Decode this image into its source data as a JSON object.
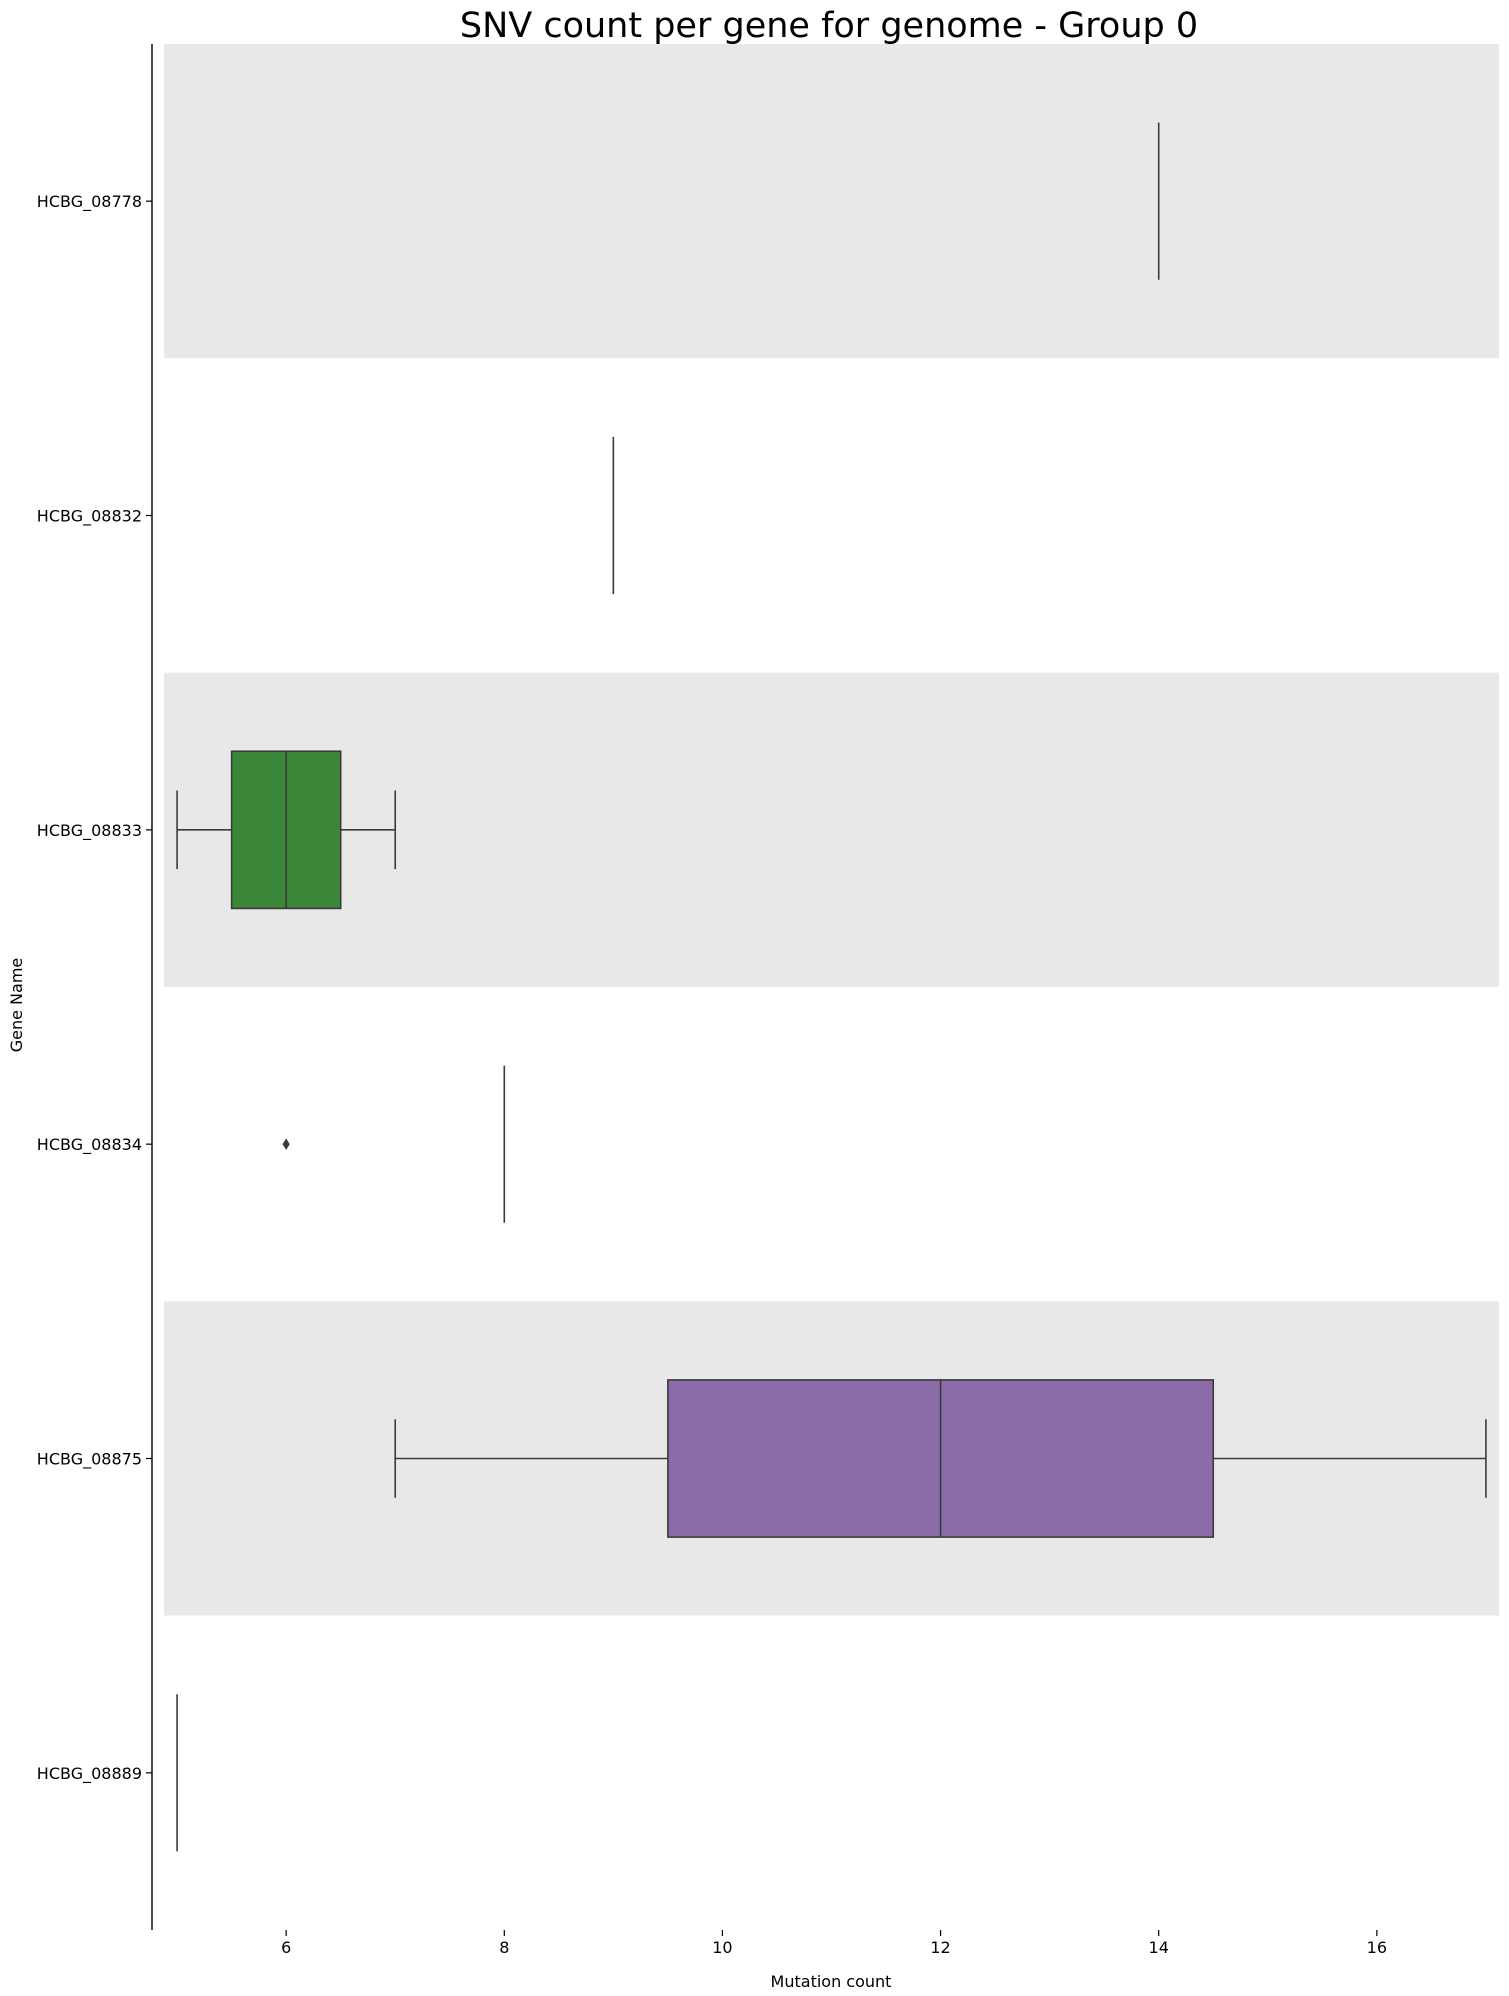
{
  "chart_data": {
    "type": "boxplot",
    "orientation": "horizontal",
    "title": "SNV count per gene for genome - Group 0",
    "xlabel": "Mutation count",
    "ylabel": "Gene Name",
    "xlim": [
      4.88,
      17.12
    ],
    "xticks": [
      6,
      8,
      10,
      12,
      14,
      16
    ],
    "background_bands": [
      "#e8e8e8",
      "#ffffff"
    ],
    "categories": [
      "HCBG_08778",
      "HCBG_08832",
      "HCBG_08833",
      "HCBG_08834",
      "HCBG_08875",
      "HCBG_08889"
    ],
    "boxes": [
      {
        "gene": "HCBG_08778",
        "whisker_low": 14,
        "q1": 14,
        "median": 14,
        "q3": 14,
        "whisker_high": 14,
        "outliers": [],
        "color": "#1f77b4"
      },
      {
        "gene": "HCBG_08832",
        "whisker_low": 9,
        "q1": 9,
        "median": 9,
        "q3": 9,
        "whisker_high": 9,
        "outliers": [],
        "color": "#ff7f0e"
      },
      {
        "gene": "HCBG_08833",
        "whisker_low": 5,
        "q1": 5.5,
        "median": 6,
        "q3": 6.5,
        "whisker_high": 7,
        "outliers": [],
        "color": "#3a873a"
      },
      {
        "gene": "HCBG_08834",
        "whisker_low": 8,
        "q1": 8,
        "median": 8,
        "q3": 8,
        "whisker_high": 8,
        "outliers": [
          6
        ],
        "color": "#d62728"
      },
      {
        "gene": "HCBG_08875",
        "whisker_low": 7,
        "q1": 9.5,
        "median": 12,
        "q3": 14.5,
        "whisker_high": 17,
        "outliers": [],
        "color": "#8b6ca8"
      },
      {
        "gene": "HCBG_08889",
        "whisker_low": 5,
        "q1": 5,
        "median": 5,
        "q3": 5,
        "whisker_high": 5,
        "outliers": [],
        "color": "#8c564b"
      }
    ]
  }
}
